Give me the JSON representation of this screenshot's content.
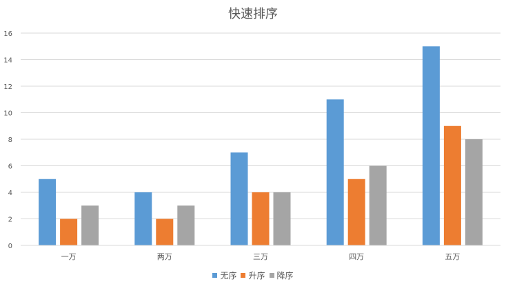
{
  "chart_data": {
    "type": "bar",
    "title": "快速排序",
    "categories": [
      "一万",
      "两万",
      "三万",
      "四万",
      "五万"
    ],
    "series": [
      {
        "name": "无序",
        "values": [
          5,
          4,
          7,
          11,
          15
        ],
        "color": "#5B9BD5"
      },
      {
        "name": "升序",
        "values": [
          2,
          2,
          4,
          5,
          9
        ],
        "color": "#ED7D31"
      },
      {
        "name": "降序",
        "values": [
          3,
          3,
          4,
          6,
          8
        ],
        "color": "#A5A5A5"
      }
    ],
    "ylim": [
      0,
      16
    ],
    "yticks": [
      0,
      2,
      4,
      6,
      8,
      10,
      12,
      14,
      16
    ],
    "grid": true,
    "legend_position": "bottom"
  }
}
